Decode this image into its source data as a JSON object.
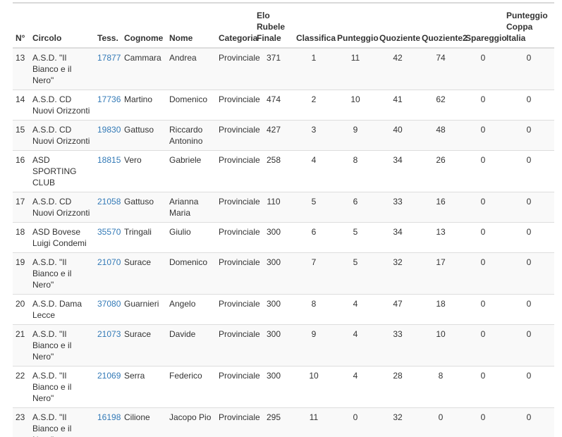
{
  "colors": {
    "link": "#337ab7",
    "row_stripe": "#f9f9f9",
    "border": "#dddddd",
    "text": "#333333"
  },
  "table": {
    "columns": [
      {
        "key": "n",
        "label": "N°"
      },
      {
        "key": "circolo",
        "label": "Circolo"
      },
      {
        "key": "tess",
        "label": "Tess."
      },
      {
        "key": "cognome",
        "label": "Cognome"
      },
      {
        "key": "nome",
        "label": "Nome"
      },
      {
        "key": "categoria",
        "label": "Categoria"
      },
      {
        "key": "elo",
        "label": "Elo Rubele Finale"
      },
      {
        "key": "classifica",
        "label": "Classifica"
      },
      {
        "key": "punteggio",
        "label": "Punteggio"
      },
      {
        "key": "quoziente",
        "label": "Quoziente"
      },
      {
        "key": "quoziente2",
        "label": "Quoziente2"
      },
      {
        "key": "spareggio",
        "label": "Spareggio"
      },
      {
        "key": "punteggio_coppa",
        "label": "Punteggio Coppa Italia"
      }
    ],
    "rows": [
      {
        "n": "13",
        "circolo": "A.S.D. \"Il Bianco e il Nero\"",
        "tess": "17877",
        "cognome": "Cammara",
        "nome": "Andrea",
        "categoria": "Provinciale",
        "elo": "371",
        "classifica": "1",
        "punteggio": "11",
        "quoziente": "42",
        "quoziente2": "74",
        "spareggio": "0",
        "punteggio_coppa": "0"
      },
      {
        "n": "14",
        "circolo": "A.S.D. CD Nuovi Orizzonti",
        "tess": "17736",
        "cognome": "Martino",
        "nome": "Domenico",
        "categoria": "Provinciale",
        "elo": "474",
        "classifica": "2",
        "punteggio": "10",
        "quoziente": "41",
        "quoziente2": "62",
        "spareggio": "0",
        "punteggio_coppa": "0"
      },
      {
        "n": "15",
        "circolo": "A.S.D. CD Nuovi Orizzonti",
        "tess": "19830",
        "cognome": "Gattuso",
        "nome": "Riccardo Antonino",
        "categoria": "Provinciale",
        "elo": "427",
        "classifica": "3",
        "punteggio": "9",
        "quoziente": "40",
        "quoziente2": "48",
        "spareggio": "0",
        "punteggio_coppa": "0"
      },
      {
        "n": "16",
        "circolo": "ASD SPORTING CLUB",
        "tess": "18815",
        "cognome": "Vero",
        "nome": "Gabriele",
        "categoria": "Provinciale",
        "elo": "258",
        "classifica": "4",
        "punteggio": "8",
        "quoziente": "34",
        "quoziente2": "26",
        "spareggio": "0",
        "punteggio_coppa": "0"
      },
      {
        "n": "17",
        "circolo": "A.S.D. CD Nuovi Orizzonti",
        "tess": "21058",
        "cognome": "Gattuso",
        "nome": "Arianna Maria",
        "categoria": "Provinciale",
        "elo": "110",
        "classifica": "5",
        "punteggio": "6",
        "quoziente": "33",
        "quoziente2": "16",
        "spareggio": "0",
        "punteggio_coppa": "0"
      },
      {
        "n": "18",
        "circolo": "ASD Bovese Luigi Condemi",
        "tess": "35570",
        "cognome": "Tringali",
        "nome": "Giulio",
        "categoria": "Provinciale",
        "elo": "300",
        "classifica": "6",
        "punteggio": "5",
        "quoziente": "34",
        "quoziente2": "13",
        "spareggio": "0",
        "punteggio_coppa": "0"
      },
      {
        "n": "19",
        "circolo": "A.S.D. \"Il Bianco e il Nero\"",
        "tess": "21070",
        "cognome": "Surace",
        "nome": "Domenico",
        "categoria": "Provinciale",
        "elo": "300",
        "classifica": "7",
        "punteggio": "5",
        "quoziente": "32",
        "quoziente2": "17",
        "spareggio": "0",
        "punteggio_coppa": "0"
      },
      {
        "n": "20",
        "circolo": "A.S.D. Dama Lecce",
        "tess": "37080",
        "cognome": "Guarnieri",
        "nome": "Angelo",
        "categoria": "Provinciale",
        "elo": "300",
        "classifica": "8",
        "punteggio": "4",
        "quoziente": "47",
        "quoziente2": "18",
        "spareggio": "0",
        "punteggio_coppa": "0"
      },
      {
        "n": "21",
        "circolo": "A.S.D. \"Il Bianco e il Nero\"",
        "tess": "21073",
        "cognome": "Surace",
        "nome": "Davide",
        "categoria": "Provinciale",
        "elo": "300",
        "classifica": "9",
        "punteggio": "4",
        "quoziente": "33",
        "quoziente2": "10",
        "spareggio": "0",
        "punteggio_coppa": "0"
      },
      {
        "n": "22",
        "circolo": "A.S.D. \"Il Bianco e il Nero\"",
        "tess": "21069",
        "cognome": "Serra",
        "nome": "Federico",
        "categoria": "Provinciale",
        "elo": "300",
        "classifica": "10",
        "punteggio": "4",
        "quoziente": "28",
        "quoziente2": "8",
        "spareggio": "0",
        "punteggio_coppa": "0"
      },
      {
        "n": "23",
        "circolo": "A.S.D. \"Il Bianco e il Nero\"",
        "tess": "16198",
        "cognome": "Cilione",
        "nome": "Jacopo Pio",
        "categoria": "Provinciale",
        "elo": "295",
        "classifica": "11",
        "punteggio": "0",
        "quoziente": "32",
        "quoziente2": "0",
        "spareggio": "0",
        "punteggio_coppa": "0"
      }
    ]
  }
}
